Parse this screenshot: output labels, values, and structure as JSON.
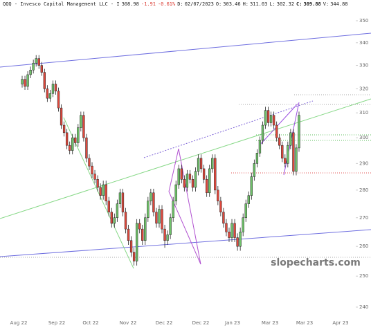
{
  "header": {
    "name": "QQQ - Invesco Capital Management LLC - I",
    "last": "308.98",
    "change": "-1.91",
    "change_pct": "-0.61%",
    "fields": [
      {
        "label": "D:",
        "value": "02/07/2023"
      },
      {
        "label": "O:",
        "value": "303.46"
      },
      {
        "label": "H:",
        "value": "311.03"
      },
      {
        "label": "L:",
        "value": "302.32"
      },
      {
        "label": "C:",
        "value": "309.88",
        "bold": true
      },
      {
        "label": "V:",
        "value": "344.88"
      }
    ],
    "down_color": "#d9342b"
  },
  "watermark": "slopecharts.com",
  "chart_data": {
    "type": "candlestick",
    "log_scale": true,
    "up_color": "#6fc26a",
    "down_color": "#e0483c",
    "xtick_labels": [
      "Aug 22",
      "Sep 22",
      "Oct 22",
      "Nov 22",
      "Dec 22",
      "Dec 22",
      "Jan 23",
      "Mar 23",
      "Mar 23",
      "Apr 23"
    ],
    "ylim": [
      240,
      350
    ],
    "yticks": [
      240,
      250,
      260,
      270,
      280,
      290,
      300,
      310,
      320,
      330,
      340,
      350
    ],
    "ohlc": [
      [
        322,
        325.5,
        320.5,
        324
      ],
      [
        324,
        325.5,
        319.5,
        321
      ],
      [
        321,
        327.5,
        319.5,
        326
      ],
      [
        326,
        329.5,
        324.5,
        328
      ],
      [
        328,
        332.5,
        326.5,
        331
      ],
      [
        331,
        334.5,
        329.5,
        333
      ],
      [
        333,
        334.5,
        328.5,
        330
      ],
      [
        330,
        331.5,
        325.5,
        327
      ],
      [
        327,
        328.5,
        318.5,
        320
      ],
      [
        320,
        321.5,
        314.5,
        316
      ],
      [
        316,
        319.5,
        314.5,
        318
      ],
      [
        318,
        323.5,
        316.5,
        322
      ],
      [
        322,
        323.5,
        317.5,
        319
      ],
      [
        319,
        320.5,
        310.5,
        312
      ],
      [
        312,
        313.5,
        303.5,
        305
      ],
      [
        305,
        306.5,
        300.5,
        302
      ],
      [
        302,
        303.5,
        295.5,
        297
      ],
      [
        297,
        298.5,
        293.5,
        295
      ],
      [
        295,
        301.5,
        293.5,
        300
      ],
      [
        300,
        301.5,
        296.5,
        298
      ],
      [
        298,
        305.5,
        296.5,
        304
      ],
      [
        304,
        310.5,
        302.5,
        309
      ],
      [
        309,
        310.5,
        298.5,
        300
      ],
      [
        300,
        301.5,
        290.5,
        292
      ],
      [
        292,
        293.5,
        287.5,
        289
      ],
      [
        289,
        290.5,
        284.5,
        286
      ],
      [
        286,
        287.5,
        282.5,
        284
      ],
      [
        284,
        285.5,
        279.5,
        281
      ],
      [
        281,
        282.5,
        276.5,
        278
      ],
      [
        278,
        283.5,
        276.5,
        282
      ],
      [
        282,
        283.5,
        274.5,
        276
      ],
      [
        276,
        277.5,
        270.5,
        272
      ],
      [
        272,
        273.5,
        266.5,
        268
      ],
      [
        268,
        271.5,
        266.5,
        270
      ],
      [
        270,
        276.5,
        268.5,
        275
      ],
      [
        275,
        280.5,
        273.5,
        279
      ],
      [
        279,
        280.5,
        270.5,
        272
      ],
      [
        272,
        273.5,
        264.5,
        266
      ],
      [
        266,
        267.5,
        260.5,
        262
      ],
      [
        262,
        263.5,
        256.5,
        258
      ],
      [
        258,
        259.5,
        253.5,
        255
      ],
      [
        255,
        269.5,
        253.5,
        268
      ],
      [
        268,
        269.5,
        264.5,
        266
      ],
      [
        266,
        267.5,
        260.5,
        262
      ],
      [
        262,
        271.5,
        260.5,
        270
      ],
      [
        270,
        277.5,
        268.5,
        276
      ],
      [
        276,
        280.5,
        274.5,
        279
      ],
      [
        279,
        280.5,
        270.5,
        272
      ],
      [
        272,
        273.5,
        266.5,
        268
      ],
      [
        268,
        274.5,
        266.5,
        273
      ],
      [
        273,
        274.5,
        264.5,
        266
      ],
      [
        266,
        267.5,
        259.5,
        262
      ],
      [
        262,
        265.5,
        260.5,
        264
      ],
      [
        264,
        271.5,
        262.5,
        270
      ],
      [
        270,
        277.5,
        268.5,
        276
      ],
      [
        276,
        283.5,
        274.5,
        282
      ],
      [
        282,
        289.5,
        280.5,
        288
      ],
      [
        288,
        289.5,
        282.5,
        284
      ],
      [
        284,
        285.5,
        279.5,
        281
      ],
      [
        281,
        287.5,
        279.5,
        286
      ],
      [
        286,
        287.5,
        282.5,
        284
      ],
      [
        284,
        285.5,
        279.5,
        281
      ],
      [
        281,
        288.5,
        279.5,
        287
      ],
      [
        287,
        293.5,
        285.5,
        292
      ],
      [
        292,
        293.5,
        286.5,
        288
      ],
      [
        288,
        289.5,
        282.5,
        284
      ],
      [
        284,
        285.5,
        277.5,
        279
      ],
      [
        279,
        289.5,
        277.5,
        288
      ],
      [
        288,
        293.5,
        286.5,
        292
      ],
      [
        292,
        293.5,
        278.5,
        280
      ],
      [
        280,
        281.5,
        274.5,
        276
      ],
      [
        276,
        277.5,
        270.5,
        272
      ],
      [
        272,
        273.5,
        266.5,
        268
      ],
      [
        268,
        269.5,
        263.5,
        265
      ],
      [
        265,
        266.5,
        261.5,
        263
      ],
      [
        263,
        269.5,
        261.5,
        268
      ],
      [
        268,
        269.5,
        261.5,
        263
      ],
      [
        263,
        264.5,
        258.5,
        260
      ],
      [
        260,
        266.5,
        258.5,
        265
      ],
      [
        265,
        271.5,
        263.5,
        270
      ],
      [
        270,
        276.5,
        268.5,
        275
      ],
      [
        275,
        279.5,
        273.5,
        278
      ],
      [
        278,
        286.5,
        276.5,
        285
      ],
      [
        285,
        291.5,
        283.5,
        290
      ],
      [
        290,
        295.5,
        288.5,
        294
      ],
      [
        294,
        300.5,
        292.5,
        299
      ],
      [
        299,
        306.5,
        297.5,
        305
      ],
      [
        305,
        312.5,
        303.5,
        311
      ],
      [
        311,
        312.5,
        304.5,
        306
      ],
      [
        306,
        310.5,
        304.5,
        309
      ],
      [
        309,
        310.5,
        303.5,
        305
      ],
      [
        305,
        306.5,
        298.5,
        300
      ],
      [
        300,
        301.5,
        295.5,
        297
      ],
      [
        297,
        298.5,
        290.5,
        292
      ],
      [
        292,
        293.5,
        288.5,
        290
      ],
      [
        290,
        298.5,
        288.5,
        297
      ],
      [
        297,
        303.5,
        295.5,
        302
      ],
      [
        302,
        303.5,
        285.5,
        287
      ],
      [
        287,
        297.5,
        285.5,
        296
      ],
      [
        296,
        310.5,
        294.5,
        309
      ]
    ]
  }
}
